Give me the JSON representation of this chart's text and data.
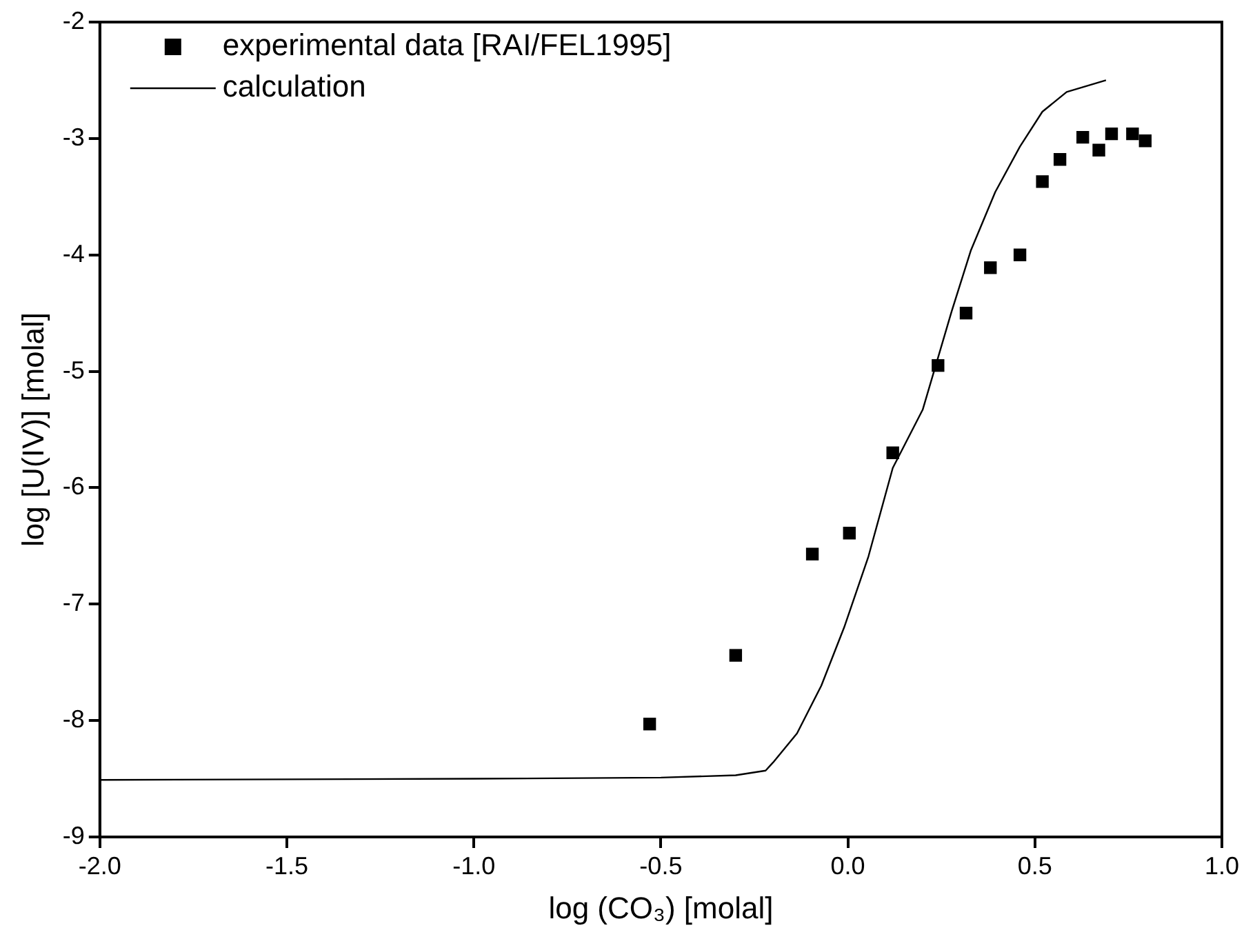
{
  "chart_data": {
    "type": "scatter",
    "xlabel": "log (CO₃) [molal]",
    "ylabel": "log [U(IV)] [molal]",
    "xlim": [
      -2.0,
      1.0
    ],
    "xticks": [
      {
        "value": -2,
        "label": "-2.0"
      },
      {
        "value": -1.5,
        "label": "-1.5"
      },
      {
        "value": -1,
        "label": "-1.0"
      },
      {
        "value": -0.5,
        "label": "-0.5"
      },
      {
        "value": 0,
        "label": "0.0"
      },
      {
        "value": 0.5,
        "label": "0.5"
      },
      {
        "value": 1,
        "label": "1.0"
      }
    ],
    "ylim": [
      -9,
      -2
    ],
    "yticks": [
      -9,
      -8,
      -7,
      -6,
      -5,
      -4,
      -3,
      -2
    ],
    "grid": false,
    "legend": "top left",
    "series": [
      {
        "name": "experimental data [RAI/FEL1995]",
        "marker": "square",
        "color": "#000000",
        "x": [
          -0.53,
          -0.3,
          -0.095,
          0.004,
          0.12,
          0.241,
          0.316,
          0.381,
          0.46,
          0.52,
          0.567,
          0.628,
          0.671,
          0.705,
          0.761,
          0.795
        ],
        "values": [
          -8.03,
          -7.44,
          -6.57,
          -6.39,
          -5.7,
          -4.95,
          -4.5,
          -4.11,
          -4.0,
          -3.37,
          -3.18,
          -2.99,
          -3.1,
          -2.96,
          -2.96,
          -3.02
        ]
      },
      {
        "name": "calculation",
        "type": "line",
        "marker": "none",
        "line_style": "solid",
        "color": "#000000",
        "x": [
          -2,
          -1,
          -0.5,
          -0.3,
          -0.22,
          -0.2,
          -0.136,
          -0.071,
          -0.01,
          0.055,
          0.12,
          0.2,
          0.277,
          0.329,
          0.394,
          0.46,
          0.52,
          0.585,
          0.69
        ],
        "values": [
          -8.51,
          -8.5,
          -8.49,
          -8.47,
          -8.43,
          -8.36,
          -8.11,
          -7.7,
          -7.2,
          -6.59,
          -5.83,
          -5.33,
          -4.49,
          -3.96,
          -3.46,
          -3.07,
          -2.77,
          -2.6,
          -2.5
        ]
      }
    ]
  }
}
